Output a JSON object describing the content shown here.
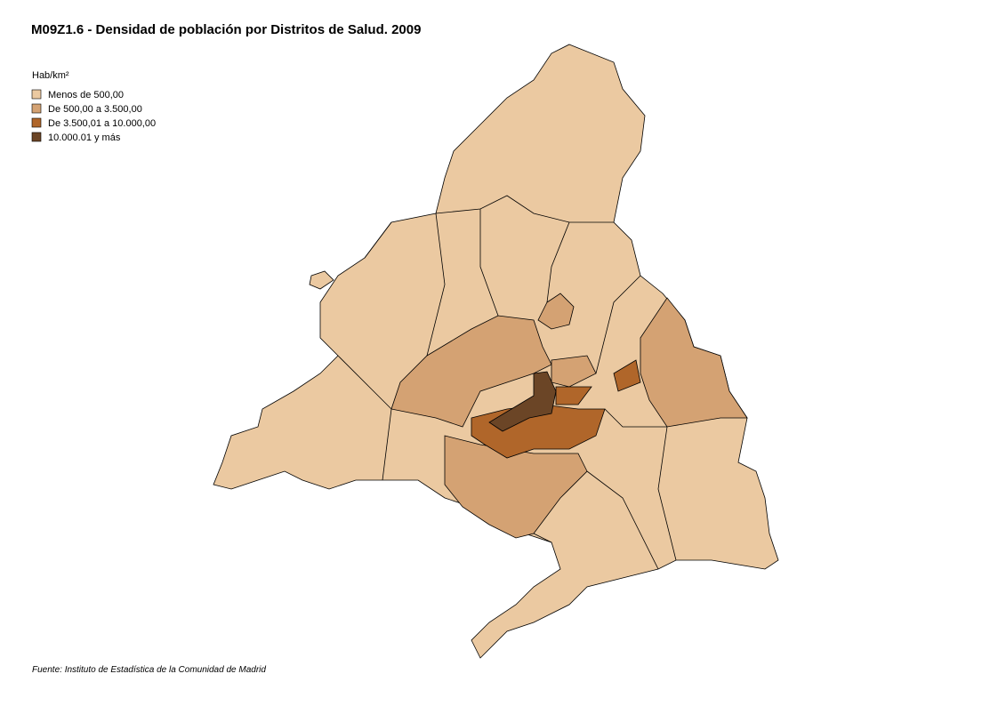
{
  "header": {
    "title": "M09Z1.6 - Densidad de población por Distritos de Salud. 2009"
  },
  "legend": {
    "title": "Hab/km²",
    "items": [
      {
        "label": "Menos de 500,00",
        "color": "#ebc9a1"
      },
      {
        "label": "De 500,00 a 3.500,00",
        "color": "#d4a273"
      },
      {
        "label": "De 3.500,01 a 10.000,00",
        "color": "#b0662a"
      },
      {
        "label": "10.000.01 y más",
        "color": "#6b4526"
      }
    ]
  },
  "footer": {
    "source": "Fuente: Instituto de Estadística de la Comunidad de Madrid"
  }
}
